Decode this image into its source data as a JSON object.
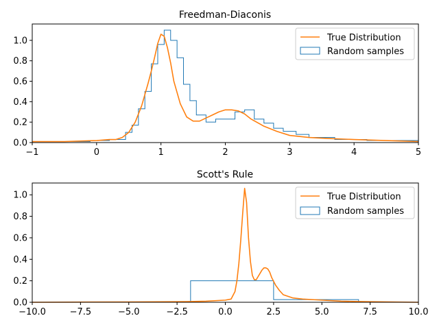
{
  "colors": {
    "hist": "#1f77b4",
    "curve": "#ff7f0e",
    "axis": "#000000",
    "legend_border": "#cccccc",
    "background": "#ffffff"
  },
  "chart_data": [
    {
      "type": "histogram",
      "title": "Freedman-Diaconis",
      "xlim": [
        -1,
        5
      ],
      "ylim": [
        0,
        1.16
      ],
      "xticks": [
        -1,
        0,
        1,
        2,
        3,
        4,
        5
      ],
      "xtick_labels": [
        "−1",
        "0",
        "1",
        "2",
        "3",
        "4",
        "5"
      ],
      "yticks": [
        0.0,
        0.2,
        0.4,
        0.6,
        0.8,
        1.0
      ],
      "ytick_labels": [
        "0.0",
        "0.2",
        "0.4",
        "0.6",
        "0.8",
        "1.0"
      ],
      "grid": false,
      "legend": {
        "position": "upper right",
        "entries": [
          {
            "label": "True Distribution",
            "kind": "line"
          },
          {
            "label": "Random samples",
            "kind": "step"
          }
        ]
      },
      "histogram": {
        "edges": [
          -1.0,
          -0.1,
          0.2,
          0.45,
          0.55,
          0.65,
          0.75,
          0.85,
          0.95,
          1.05,
          1.15,
          1.25,
          1.35,
          1.45,
          1.55,
          1.7,
          1.85,
          2.15,
          2.3,
          2.45,
          2.6,
          2.75,
          2.9,
          3.1,
          3.3,
          3.7,
          4.2,
          5.0
        ],
        "heights": [
          0.01,
          0.02,
          0.03,
          0.1,
          0.17,
          0.33,
          0.5,
          0.77,
          0.96,
          1.1,
          1.0,
          0.83,
          0.57,
          0.41,
          0.27,
          0.2,
          0.23,
          0.3,
          0.32,
          0.23,
          0.19,
          0.14,
          0.11,
          0.08,
          0.05,
          0.03,
          0.02
        ]
      },
      "curve": {
        "x": [
          -1.0,
          -0.5,
          0.0,
          0.2,
          0.3,
          0.4,
          0.5,
          0.6,
          0.7,
          0.8,
          0.85,
          0.9,
          0.95,
          1.0,
          1.05,
          1.1,
          1.15,
          1.2,
          1.3,
          1.4,
          1.5,
          1.6,
          1.7,
          1.8,
          1.9,
          2.0,
          2.1,
          2.2,
          2.3,
          2.4,
          2.6,
          2.8,
          3.0,
          3.3,
          3.6,
          4.0,
          4.5,
          5.0
        ],
        "y": [
          0.01,
          0.01,
          0.02,
          0.03,
          0.03,
          0.05,
          0.1,
          0.2,
          0.36,
          0.58,
          0.7,
          0.83,
          0.97,
          1.06,
          1.04,
          0.93,
          0.78,
          0.6,
          0.38,
          0.25,
          0.21,
          0.21,
          0.24,
          0.27,
          0.3,
          0.32,
          0.32,
          0.31,
          0.28,
          0.23,
          0.16,
          0.11,
          0.07,
          0.05,
          0.04,
          0.03,
          0.02,
          0.01
        ]
      }
    },
    {
      "type": "histogram",
      "title": "Scott's Rule",
      "xlim": [
        -10,
        10
      ],
      "ylim": [
        0,
        1.11
      ],
      "xticks": [
        -10.0,
        -7.5,
        -5.0,
        -2.5,
        0.0,
        2.5,
        5.0,
        7.5,
        10.0
      ],
      "xtick_labels": [
        "−10.0",
        "−7.5",
        "−5.0",
        "−2.5",
        "0.0",
        "2.5",
        "5.0",
        "7.5",
        "10.0"
      ],
      "yticks": [
        0.0,
        0.2,
        0.4,
        0.6,
        0.8,
        1.0
      ],
      "ytick_labels": [
        "0.0",
        "0.2",
        "0.4",
        "0.6",
        "0.8",
        "1.0"
      ],
      "grid": false,
      "legend": {
        "position": "upper right",
        "entries": [
          {
            "label": "True Distribution",
            "kind": "line"
          },
          {
            "label": "Random samples",
            "kind": "box"
          }
        ]
      },
      "histogram": {
        "edges": [
          -1.8,
          2.5,
          6.9
        ],
        "heights": [
          0.2,
          0.025
        ]
      },
      "curve": {
        "x": [
          -10.0,
          -5.0,
          -2.0,
          -1.0,
          0.0,
          0.3,
          0.5,
          0.6,
          0.7,
          0.8,
          0.9,
          1.0,
          1.1,
          1.2,
          1.3,
          1.4,
          1.5,
          1.6,
          1.7,
          1.8,
          1.9,
          2.0,
          2.1,
          2.2,
          2.3,
          2.4,
          2.6,
          2.8,
          3.0,
          3.5,
          4.0,
          5.0,
          6.0,
          7.5,
          10.0
        ],
        "y": [
          0.0,
          0.003,
          0.006,
          0.01,
          0.02,
          0.03,
          0.1,
          0.2,
          0.36,
          0.58,
          0.83,
          1.06,
          0.93,
          0.6,
          0.38,
          0.25,
          0.21,
          0.21,
          0.24,
          0.27,
          0.3,
          0.32,
          0.32,
          0.31,
          0.28,
          0.23,
          0.16,
          0.11,
          0.07,
          0.04,
          0.03,
          0.02,
          0.01,
          0.005,
          0.0
        ]
      }
    }
  ]
}
